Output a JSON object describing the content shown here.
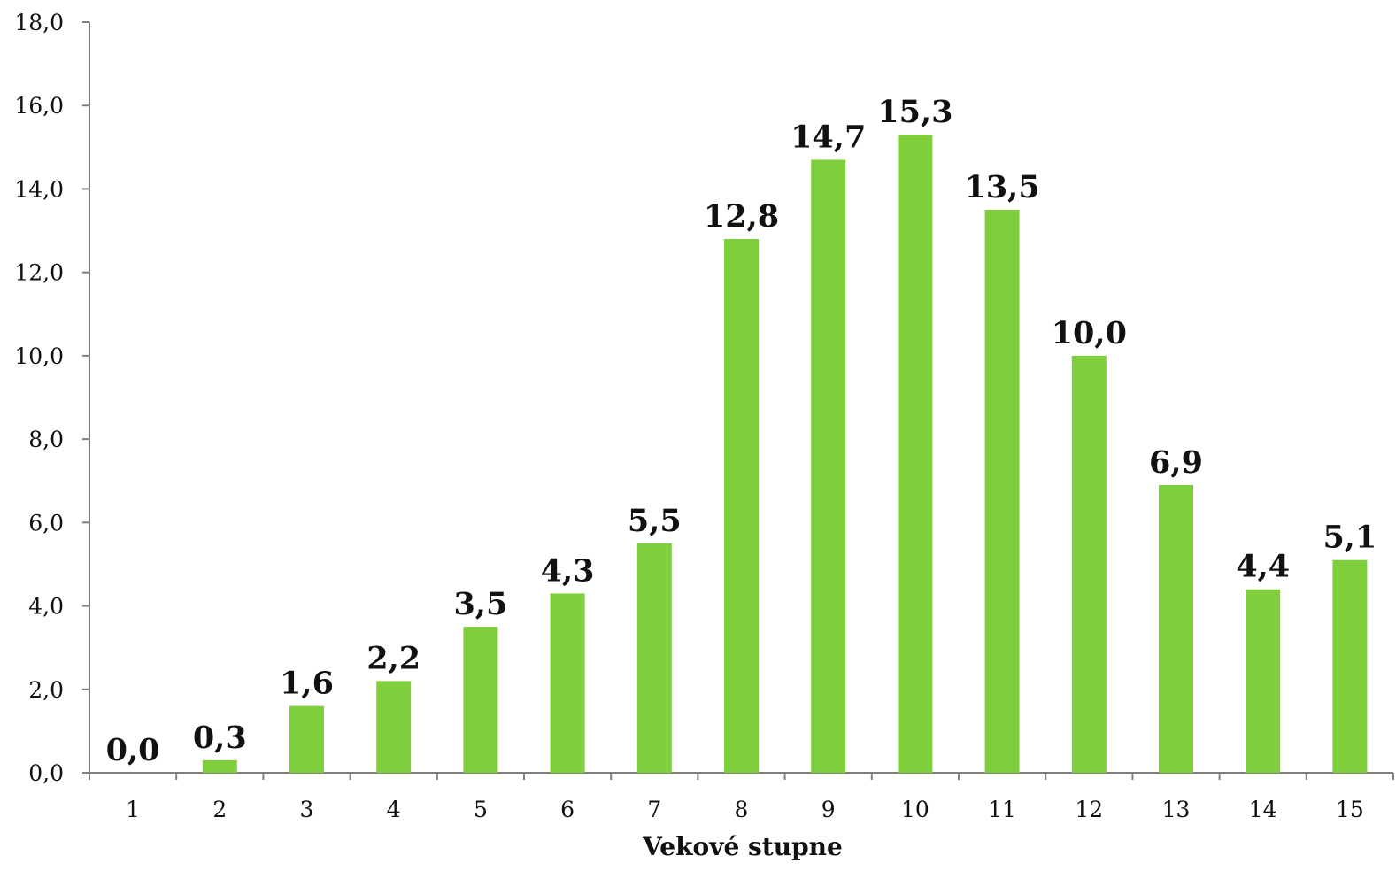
{
  "chart_data": {
    "type": "bar",
    "categories": [
      "1",
      "2",
      "3",
      "4",
      "5",
      "6",
      "7",
      "8",
      "9",
      "10",
      "11",
      "12",
      "13",
      "14",
      "15"
    ],
    "values": [
      0.0,
      0.3,
      1.6,
      2.2,
      3.5,
      4.3,
      5.5,
      12.8,
      14.7,
      15.3,
      13.5,
      10.0,
      6.9,
      4.4,
      5.1
    ],
    "value_labels": [
      "0,0",
      "0,3",
      "1,6",
      "2,2",
      "3,5",
      "4,3",
      "5,5",
      "12,8",
      "14,7",
      "15,3",
      "13,5",
      "10,0",
      "6,9",
      "4,4",
      "5,1"
    ],
    "title": "",
    "xlabel": "Vekové stupne",
    "ylabel": "",
    "ylim": [
      0,
      18
    ],
    "y_ticks": [
      0,
      2,
      4,
      6,
      8,
      10,
      12,
      14,
      16,
      18
    ],
    "y_tick_labels": [
      "0,0",
      "2,0",
      "4,0",
      "6,0",
      "8,0",
      "10,0",
      "12,0",
      "14,0",
      "16,0",
      "18,0"
    ],
    "grid": false,
    "legend": "none",
    "bar_color": "#7fcf3c",
    "axis_color": "#7f7f7f"
  }
}
